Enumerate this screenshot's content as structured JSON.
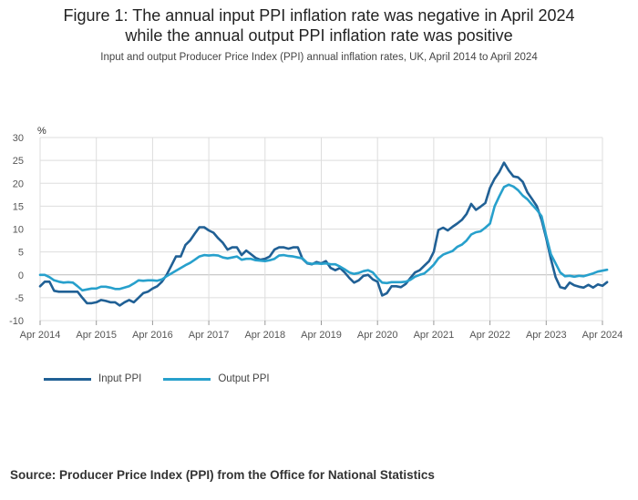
{
  "title_line1": "Figure 1: The annual input PPI inflation rate was negative in April 2024",
  "title_line2": "while the annual output PPI inflation rate was positive",
  "subtitle": "Input and output Producer Price Index (PPI) annual inflation rates, UK, April 2014 to April 2024",
  "source": "Source: Producer Price Index (PPI) from the Office for National Statistics",
  "colors": {
    "input": "#206095",
    "output": "#27a0cc",
    "grid": "#dddddd",
    "zero": "#bbbbbb"
  },
  "chart_data": {
    "type": "line",
    "title": "Figure 1: The annual input PPI inflation rate was negative in April 2024 while the annual output PPI inflation rate was positive",
    "ylabel": "%",
    "ylim": [
      -10,
      30
    ],
    "yticks": [
      -10,
      -5,
      0,
      5,
      10,
      15,
      20,
      25,
      30
    ],
    "x_start": "Apr 2014",
    "x_end": "Apr 2024",
    "xticks": [
      "Apr 2014",
      "Apr 2015",
      "Apr 2016",
      "Apr 2017",
      "Apr 2018",
      "Apr 2019",
      "Apr 2020",
      "Apr 2021",
      "Apr 2022",
      "Apr 2023",
      "Apr 2024"
    ],
    "legend_position": "bottom-left",
    "series": [
      {
        "name": "Input PPI",
        "color": "#206095",
        "values": [
          -2.5,
          -1.5,
          -1.5,
          -3.5,
          -3.7,
          -3.7,
          -3.7,
          -3.7,
          -3.7,
          -5,
          -6.2,
          -6.2,
          -6,
          -5.5,
          -5.7,
          -6,
          -6,
          -6.7,
          -6,
          -5.5,
          -6,
          -5,
          -4,
          -3.7,
          -3,
          -2.5,
          -1.5,
          0,
          2,
          4,
          4,
          6.5,
          7.5,
          9,
          10.4,
          10.4,
          9.7,
          9.2,
          8,
          7,
          5.5,
          6,
          6,
          4.3,
          5.3,
          4.5,
          3.7,
          3.3,
          3.5,
          4,
          5.5,
          6,
          6,
          5.7,
          6,
          6,
          3.5,
          2.5,
          2.3,
          2.8,
          2.5,
          3,
          1.5,
          1,
          1.5,
          0.5,
          -0.7,
          -1.7,
          -1.2,
          -0.2,
          0,
          -1,
          -1.5,
          -4.5,
          -4,
          -2.5,
          -2.5,
          -2.7,
          -2,
          -0.7,
          0.5,
          1,
          2,
          3,
          5,
          9.8,
          10.3,
          9.7,
          10.5,
          11.2,
          12,
          13.3,
          15.5,
          14.2,
          14.9,
          15.7,
          19,
          21,
          22.5,
          24.5,
          22.8,
          21.5,
          21.3,
          20.3,
          18,
          16.5,
          15,
          12,
          8,
          3.5,
          -0.5,
          -2.7,
          -3,
          -1.7,
          -2.3,
          -2.6,
          -2.8,
          -2.2,
          -2.8,
          -2.1,
          -2.4,
          -1.6
        ]
      },
      {
        "name": "Output PPI",
        "color": "#27a0cc",
        "values": [
          0,
          0,
          -0.5,
          -1.2,
          -1.5,
          -1.7,
          -1.6,
          -1.7,
          -2.5,
          -3.4,
          -3.2,
          -3,
          -3,
          -2.6,
          -2.6,
          -2.8,
          -3.1,
          -3.1,
          -2.8,
          -2.5,
          -1.9,
          -1.2,
          -1.3,
          -1.2,
          -1.2,
          -1.3,
          -1,
          -0.3,
          0.3,
          0.9,
          1.5,
          2.1,
          2.6,
          3.3,
          4,
          4.3,
          4.2,
          4.3,
          4.2,
          3.8,
          3.6,
          3.8,
          4,
          3.3,
          3.5,
          3.5,
          3.2,
          3.1,
          3,
          3.2,
          3.5,
          4.2,
          4.3,
          4.1,
          4,
          3.8,
          3.6,
          2.6,
          2.4,
          2.5,
          2.4,
          2.5,
          2.3,
          2.3,
          1.8,
          1.2,
          0.5,
          0.2,
          0.4,
          0.8,
          1,
          0.5,
          -0.7,
          -1.7,
          -1.8,
          -1.6,
          -1.6,
          -1.6,
          -1.5,
          -1.1,
          -0.4,
          0,
          0.3,
          1.2,
          2.2,
          3.6,
          4.4,
          4.8,
          5.2,
          6.1,
          6.6,
          7.5,
          8.8,
          9.3,
          9.5,
          10.3,
          11.2,
          15,
          17.2,
          19.2,
          19.7,
          19.3,
          18.5,
          17.3,
          16.5,
          15.3,
          14.2,
          12.8,
          8.5,
          4.5,
          2.5,
          0.5,
          -0.3,
          -0.2,
          -0.4,
          -0.2,
          -0.3,
          0,
          0.3,
          0.7,
          0.9,
          1.1
        ]
      }
    ]
  }
}
